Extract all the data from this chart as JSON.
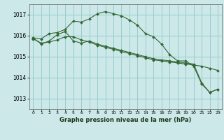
{
  "title": "Graphe pression niveau de la mer (hPa)",
  "bg_color": "#cce8e8",
  "grid_color": "#99cccc",
  "line_color": "#336633",
  "ylim": [
    1012.5,
    1017.5
  ],
  "yticks": [
    1013,
    1014,
    1015,
    1016,
    1017
  ],
  "xticks": [
    0,
    1,
    2,
    3,
    4,
    5,
    6,
    7,
    8,
    9,
    10,
    11,
    12,
    13,
    14,
    15,
    16,
    17,
    18,
    19,
    20,
    21,
    22,
    23
  ],
  "series1_x": [
    0,
    1,
    2,
    3,
    4,
    5,
    6,
    7,
    8,
    9,
    10,
    11,
    12,
    13,
    14,
    15,
    16,
    17,
    18,
    19,
    20,
    21,
    22,
    23
  ],
  "series1_y": [
    1015.9,
    1015.85,
    1016.1,
    1016.15,
    1016.3,
    1016.7,
    1016.65,
    1016.8,
    1017.05,
    1017.15,
    1017.05,
    1016.95,
    1016.75,
    1016.5,
    1016.1,
    1015.95,
    1015.6,
    1015.1,
    1014.8,
    1014.8,
    1014.55,
    1013.7,
    1013.3,
    1013.45
  ],
  "series2_x": [
    0,
    1,
    2,
    3,
    4,
    5,
    6,
    7,
    8,
    9,
    10,
    11,
    12,
    13,
    14,
    15,
    16,
    17,
    18,
    19,
    20,
    21,
    22,
    23
  ],
  "series2_y": [
    1015.85,
    1015.65,
    1015.7,
    1015.8,
    1015.95,
    1015.95,
    1015.8,
    1015.7,
    1015.55,
    1015.45,
    1015.35,
    1015.25,
    1015.15,
    1015.05,
    1014.95,
    1014.85,
    1014.8,
    1014.75,
    1014.7,
    1014.65,
    1014.6,
    1014.55,
    1014.45,
    1014.35
  ],
  "series3_x": [
    0,
    1,
    2,
    3,
    4,
    5,
    6,
    7,
    8,
    9,
    10,
    11,
    12,
    13,
    14,
    15,
    16,
    17,
    18,
    19,
    20,
    21,
    22,
    23
  ],
  "series3_y": [
    1015.9,
    1015.6,
    1015.75,
    1016.05,
    1016.2,
    1015.75,
    1015.65,
    1015.75,
    1015.6,
    1015.5,
    1015.4,
    1015.3,
    1015.2,
    1015.1,
    1015.0,
    1014.9,
    1014.85,
    1014.8,
    1014.75,
    1014.7,
    1014.65,
    1013.75,
    1013.3,
    1013.45
  ]
}
